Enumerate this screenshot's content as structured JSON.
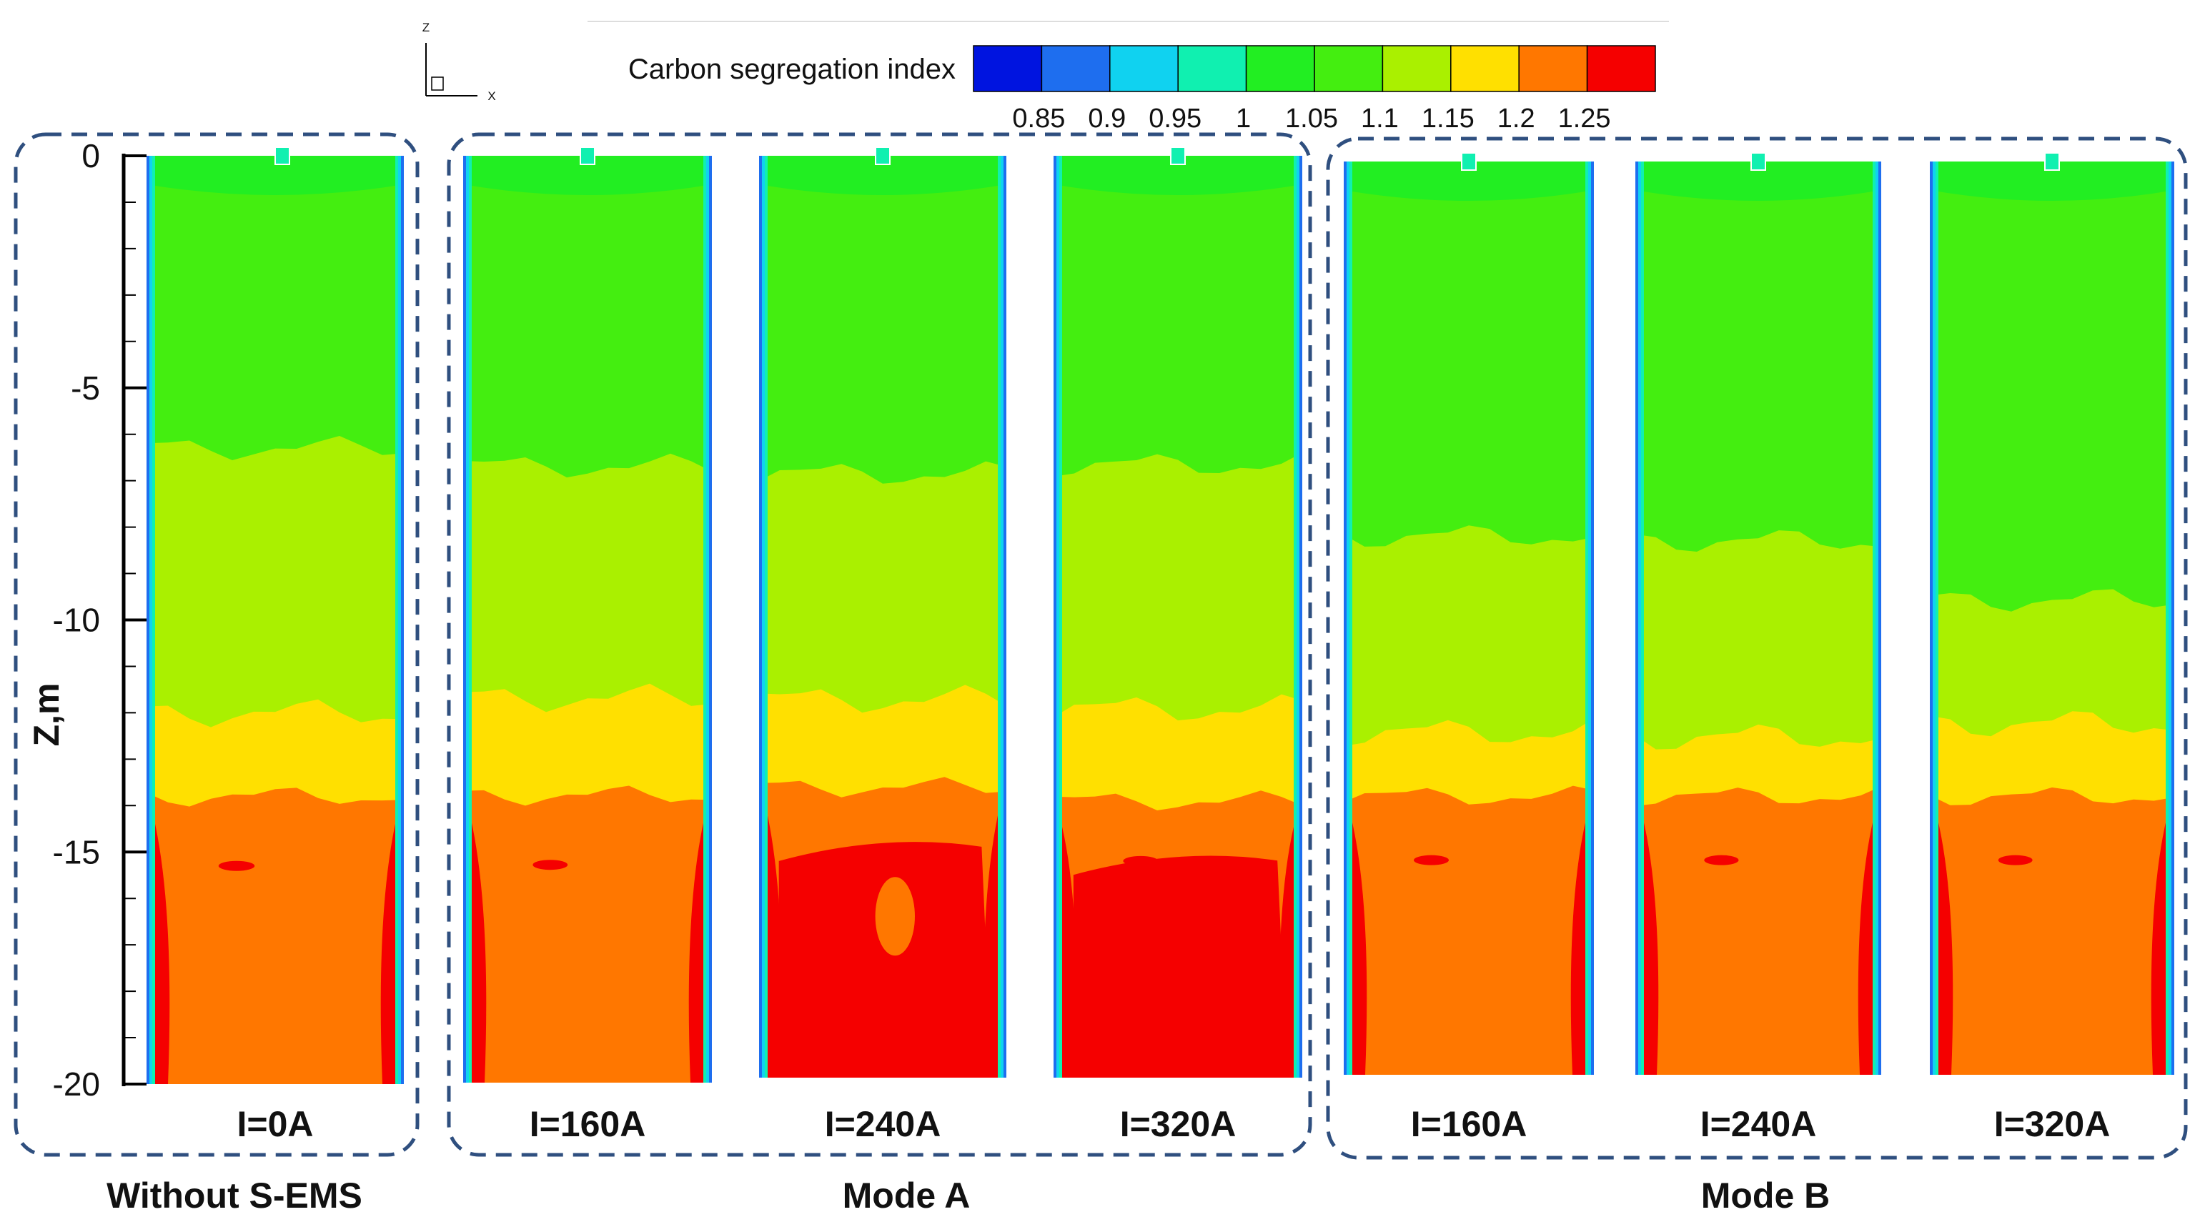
{
  "figure": {
    "axis_triad": {
      "z_label": "Z",
      "x_label": "X"
    },
    "colorbar": {
      "title": "Carbon segregation index",
      "tick_labels": [
        "0.85",
        "0.9",
        "0.95",
        "1",
        "1.05",
        "1.1",
        "1.15",
        "1.2",
        "1.25"
      ],
      "colors": [
        "#0014e0",
        "#1e6eef",
        "#10d2f0",
        "#10f0b0",
        "#22ee22",
        "#44ee10",
        "#aaf000",
        "#ffe000",
        "#ff7700",
        "#f50000"
      ]
    },
    "y_axis": {
      "label": "Z,m",
      "ticks": [
        "0",
        "-5",
        "-10",
        "-15",
        "-20"
      ],
      "range_m": [
        -20,
        0
      ]
    },
    "groups": [
      {
        "label": "Without S-EMS"
      },
      {
        "label": "Mode A"
      },
      {
        "label": "Mode B"
      }
    ],
    "panels": [
      {
        "current": "I=0A",
        "group": 0,
        "green_end_m": 6.3,
        "lime_end_m": 12.0,
        "yellow_end_m": 13.8,
        "red_core": false
      },
      {
        "current": "I=160A",
        "group": 1,
        "green_end_m": 6.7,
        "lime_end_m": 11.7,
        "yellow_end_m": 13.8,
        "red_core": false
      },
      {
        "current": "I=240A",
        "group": 1,
        "green_end_m": 6.9,
        "lime_end_m": 11.8,
        "yellow_end_m": 13.7,
        "red_core": true
      },
      {
        "current": "I=320A",
        "group": 1,
        "green_end_m": 6.7,
        "lime_end_m": 12.0,
        "yellow_end_m": 14.0,
        "red_core": true
      },
      {
        "current": "I=160A",
        "group": 2,
        "green_end_m": 8.2,
        "lime_end_m": 12.5,
        "yellow_end_m": 13.9,
        "red_core": false
      },
      {
        "current": "I=240A",
        "group": 2,
        "green_end_m": 8.3,
        "lime_end_m": 12.6,
        "yellow_end_m": 13.9,
        "red_core": false
      },
      {
        "current": "I=320A",
        "group": 2,
        "green_end_m": 9.6,
        "lime_end_m": 12.3,
        "yellow_end_m": 13.9,
        "red_core": false
      }
    ]
  }
}
